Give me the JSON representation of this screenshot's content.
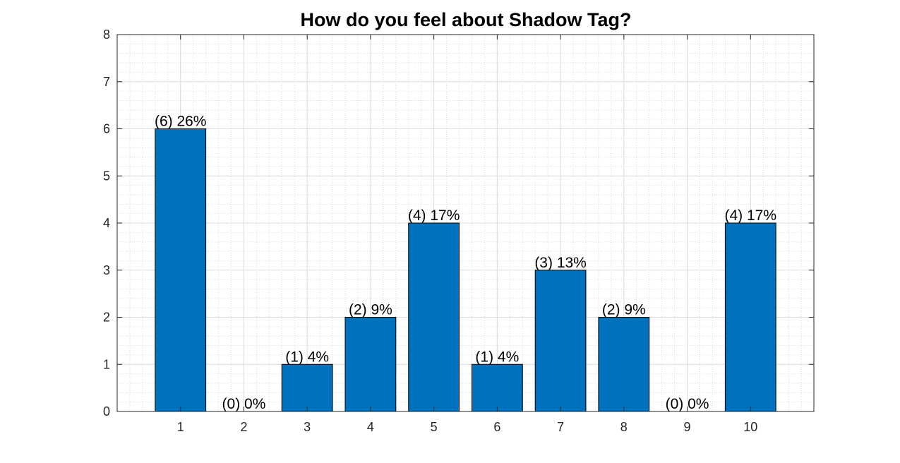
{
  "chart_data": {
    "type": "bar",
    "title": "How do you feel about Shadow Tag?",
    "categories": [
      "1",
      "2",
      "3",
      "4",
      "5",
      "6",
      "7",
      "8",
      "9",
      "10"
    ],
    "values": [
      6,
      0,
      1,
      2,
      4,
      1,
      3,
      2,
      0,
      4
    ],
    "data_labels": [
      "(6) 26%",
      "(0) 0%",
      "(1) 4%",
      "(2) 9%",
      "(4) 17%",
      "(1) 4%",
      "(3) 13%",
      "(2) 9%",
      "(0) 0%",
      "(4) 17%"
    ],
    "xlim": [
      0,
      11
    ],
    "ylim": [
      0,
      8
    ],
    "yticks": [
      "0",
      "1",
      "2",
      "3",
      "4",
      "5",
      "6",
      "7",
      "8"
    ],
    "grid": true,
    "minor_grid": true,
    "bar_color": "#0072bd"
  }
}
